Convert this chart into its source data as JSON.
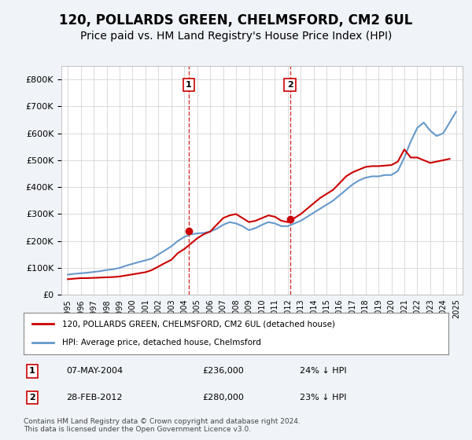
{
  "title": "120, POLLARDS GREEN, CHELMSFORD, CM2 6UL",
  "subtitle": "Price paid vs. HM Land Registry's House Price Index (HPI)",
  "title_fontsize": 12,
  "subtitle_fontsize": 10,
  "hpi_years": [
    1995,
    1995.5,
    1996,
    1996.5,
    1997,
    1997.5,
    1998,
    1998.5,
    1999,
    1999.5,
    2000,
    2000.5,
    2001,
    2001.5,
    2002,
    2002.5,
    2003,
    2003.5,
    2004,
    2004.5,
    2005,
    2005.5,
    2006,
    2006.5,
    2007,
    2007.5,
    2008,
    2008.5,
    2009,
    2009.5,
    2010,
    2010.5,
    2011,
    2011.5,
    2012,
    2012.5,
    2013,
    2013.5,
    2014,
    2014.5,
    2015,
    2015.5,
    2016,
    2016.5,
    2017,
    2017.5,
    2018,
    2018.5,
    2019,
    2019.5,
    2020,
    2020.5,
    2021,
    2021.5,
    2022,
    2022.5,
    2023,
    2023.5,
    2024,
    2024.5,
    2025
  ],
  "hpi_values": [
    75000,
    78000,
    80000,
    82000,
    85000,
    88000,
    92000,
    95000,
    100000,
    108000,
    115000,
    122000,
    128000,
    135000,
    150000,
    165000,
    180000,
    200000,
    215000,
    225000,
    228000,
    230000,
    235000,
    245000,
    260000,
    270000,
    265000,
    255000,
    240000,
    248000,
    260000,
    270000,
    265000,
    255000,
    255000,
    265000,
    275000,
    290000,
    305000,
    320000,
    335000,
    350000,
    370000,
    390000,
    410000,
    425000,
    435000,
    440000,
    440000,
    445000,
    445000,
    460000,
    510000,
    570000,
    620000,
    640000,
    610000,
    590000,
    600000,
    640000,
    680000
  ],
  "price_years": [
    1995,
    1995.5,
    1996,
    1996.5,
    1997,
    1997.5,
    1998,
    1998.5,
    1999,
    1999.5,
    2000,
    2000.5,
    2001,
    2001.5,
    2002,
    2002.5,
    2003,
    2003.5,
    2004,
    2004.5,
    2005,
    2005.5,
    2006,
    2006.5,
    2007,
    2007.5,
    2008,
    2008.5,
    2009,
    2009.5,
    2010,
    2010.5,
    2011,
    2011.5,
    2012,
    2012.5,
    2013,
    2013.5,
    2014,
    2014.5,
    2015,
    2015.5,
    2016,
    2016.5,
    2017,
    2017.5,
    2018,
    2018.5,
    2019,
    2019.5,
    2020,
    2020.5,
    2021,
    2021.5,
    2022,
    2022.5,
    2023,
    2023.5,
    2024,
    2024.5
  ],
  "price_values": [
    58000,
    60000,
    62000,
    62000,
    63000,
    64000,
    65000,
    66000,
    68000,
    72000,
    76000,
    80000,
    84000,
    92000,
    105000,
    118000,
    130000,
    155000,
    170000,
    190000,
    210000,
    225000,
    235000,
    260000,
    285000,
    295000,
    300000,
    285000,
    270000,
    275000,
    285000,
    295000,
    290000,
    275000,
    270000,
    285000,
    300000,
    320000,
    340000,
    360000,
    375000,
    390000,
    415000,
    440000,
    455000,
    465000,
    475000,
    478000,
    478000,
    480000,
    482000,
    495000,
    540000,
    510000,
    510000,
    500000,
    490000,
    495000,
    500000,
    505000
  ],
  "sale1_year": 2004.35,
  "sale1_price": 236000,
  "sale1_label": "1",
  "sale2_year": 2012.17,
  "sale2_price": 280000,
  "sale2_label": "2",
  "vline1_year": 2004.35,
  "vline2_year": 2012.17,
  "hpi_color": "#6699cc",
  "price_color": "#cc0000",
  "vline_color": "#cc0000",
  "marker_color": "#cc0000",
  "marker_label_bg": "#ffffff",
  "marker_label_border": "#cc0000",
  "ylim": [
    0,
    850000
  ],
  "yticks": [
    0,
    100000,
    200000,
    300000,
    400000,
    500000,
    600000,
    700000,
    800000
  ],
  "xlim_left": 1994.5,
  "xlim_right": 2025.5,
  "legend_entry1": "120, POLLARDS GREEN, CHELMSFORD, CM2 6UL (detached house)",
  "legend_entry2": "HPI: Average price, detached house, Chelmsford",
  "table_row1_num": "1",
  "table_row1_date": "07-MAY-2004",
  "table_row1_price": "£236,000",
  "table_row1_hpi": "24% ↓ HPI",
  "table_row2_num": "2",
  "table_row2_date": "28-FEB-2012",
  "table_row2_price": "£280,000",
  "table_row2_hpi": "23% ↓ HPI",
  "footer": "Contains HM Land Registry data © Crown copyright and database right 2024.\nThis data is licensed under the Open Government Licence v3.0.",
  "background_color": "#f0f4f8",
  "plot_bg_color": "#ffffff",
  "grid_color": "#cccccc"
}
